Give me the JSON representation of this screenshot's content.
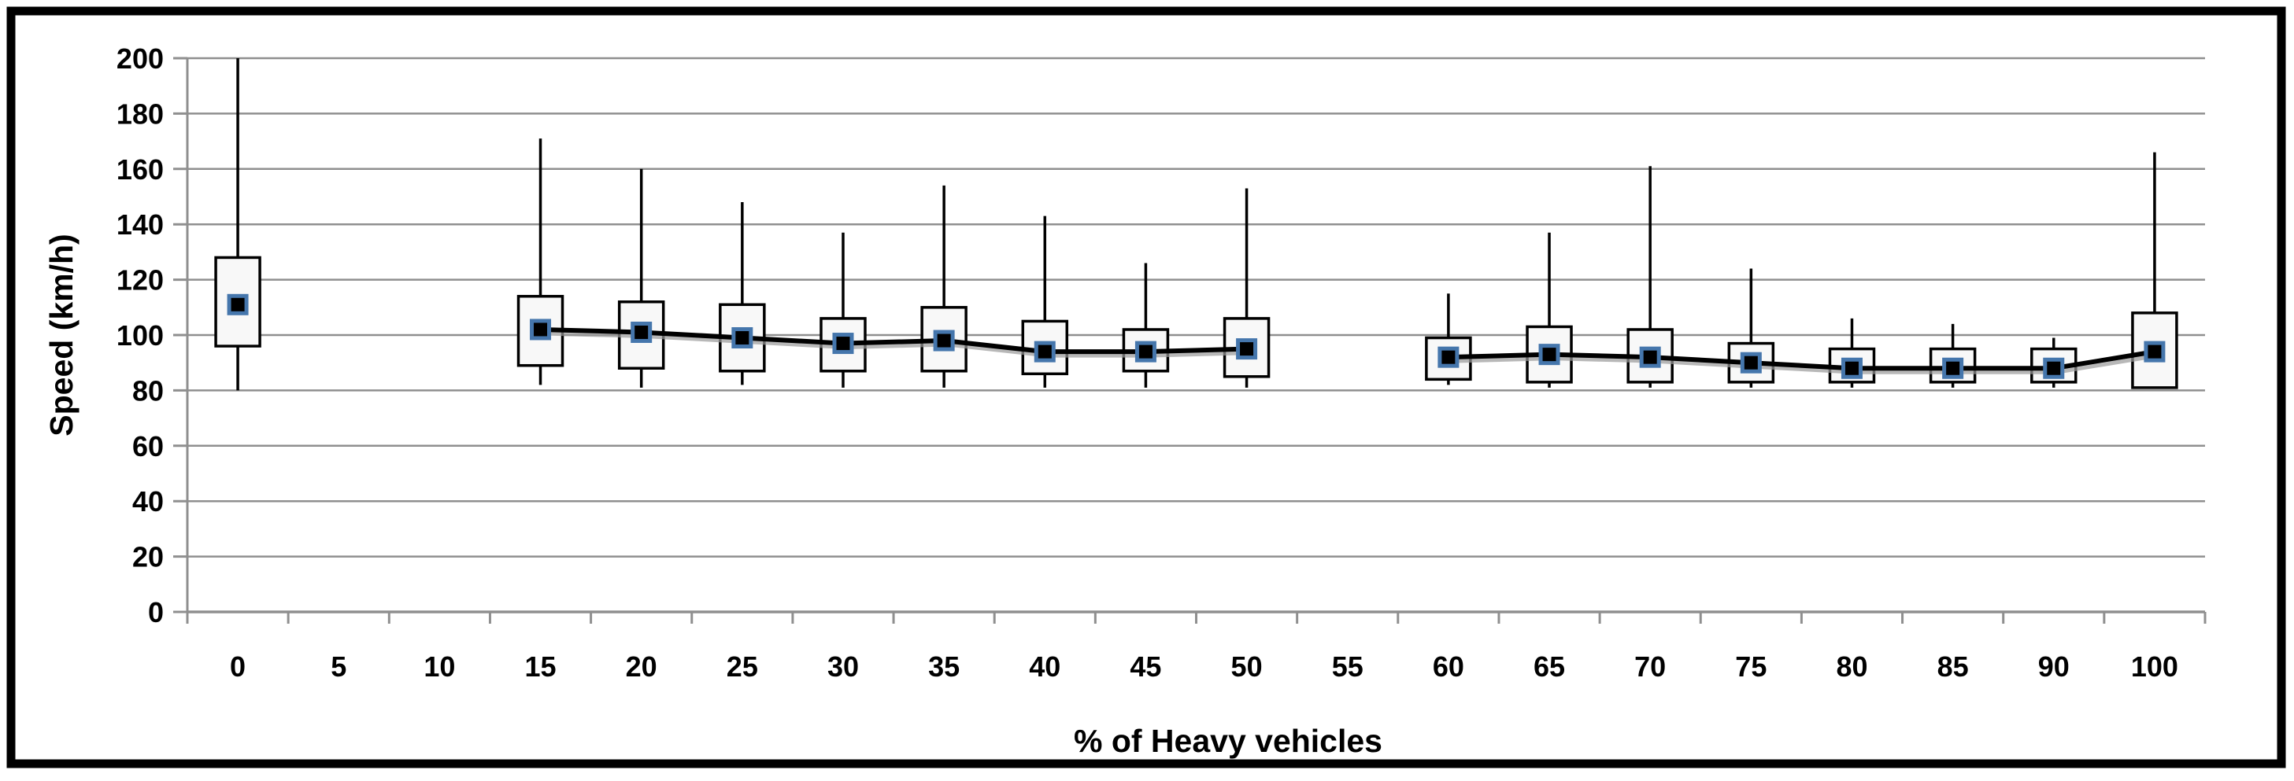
{
  "chart_data": {
    "type": "box",
    "title": "",
    "xlabel": "% of Heavy vehicles",
    "ylabel": "Speed (km/h)",
    "ylim": [
      0,
      200
    ],
    "y_ticks": [
      0,
      20,
      40,
      60,
      80,
      100,
      120,
      140,
      160,
      180,
      200
    ],
    "categories": [
      "0",
      "5",
      "10",
      "15",
      "20",
      "25",
      "30",
      "35",
      "40",
      "45",
      "50",
      "55",
      "60",
      "65",
      "70",
      "75",
      "80",
      "85",
      "90",
      "100"
    ],
    "empty_categories": [
      "5",
      "10",
      "55"
    ],
    "legend": "none",
    "grid": "horizontal",
    "boxes": [
      {
        "x": "0",
        "lo": 80,
        "q1": 96,
        "mean": 111,
        "q3": 128,
        "hi": 200
      },
      {
        "x": "15",
        "lo": 82,
        "q1": 89,
        "mean": 102,
        "q3": 114,
        "hi": 171
      },
      {
        "x": "20",
        "lo": 81,
        "q1": 88,
        "mean": 101,
        "q3": 112,
        "hi": 160
      },
      {
        "x": "25",
        "lo": 82,
        "q1": 87,
        "mean": 99,
        "q3": 111,
        "hi": 148
      },
      {
        "x": "30",
        "lo": 81,
        "q1": 87,
        "mean": 97,
        "q3": 106,
        "hi": 137
      },
      {
        "x": "35",
        "lo": 81,
        "q1": 87,
        "mean": 98,
        "q3": 110,
        "hi": 154
      },
      {
        "x": "40",
        "lo": 81,
        "q1": 86,
        "mean": 94,
        "q3": 105,
        "hi": 143
      },
      {
        "x": "45",
        "lo": 81,
        "q1": 87,
        "mean": 94,
        "q3": 102,
        "hi": 126
      },
      {
        "x": "50",
        "lo": 81,
        "q1": 85,
        "mean": 95,
        "q3": 106,
        "hi": 153
      },
      {
        "x": "60",
        "lo": 82,
        "q1": 84,
        "mean": 92,
        "q3": 99,
        "hi": 115
      },
      {
        "x": "65",
        "lo": 81,
        "q1": 83,
        "mean": 93,
        "q3": 103,
        "hi": 137
      },
      {
        "x": "70",
        "lo": 81,
        "q1": 83,
        "mean": 92,
        "q3": 102,
        "hi": 161
      },
      {
        "x": "75",
        "lo": 81,
        "q1": 83,
        "mean": 90,
        "q3": 97,
        "hi": 124
      },
      {
        "x": "80",
        "lo": 81,
        "q1": 83,
        "mean": 88,
        "q3": 95,
        "hi": 106
      },
      {
        "x": "85",
        "lo": 81,
        "q1": 83,
        "mean": 88,
        "q3": 95,
        "hi": 104
      },
      {
        "x": "90",
        "lo": 81,
        "q1": 83,
        "mean": 88,
        "q3": 95,
        "hi": 99
      },
      {
        "x": "100",
        "lo": 81,
        "q1": 81,
        "mean": 94,
        "q3": 108,
        "hi": 166
      }
    ],
    "mean_line_segments": [
      [
        "15",
        "20",
        "25",
        "30",
        "35",
        "40",
        "45",
        "50"
      ],
      [
        "60",
        "65",
        "70",
        "75",
        "80",
        "85",
        "90",
        "100"
      ]
    ],
    "colors": {
      "frame": "#000000",
      "gridline": "#8f8f8f",
      "axis": "#8f8f8f",
      "box_fill": "#f8f8f8",
      "box_stroke": "#000000",
      "whisker": "#000000",
      "mean_marker_fill": "#000000",
      "mean_marker_stroke": "#4576ac",
      "mean_line": "#000000",
      "mean_line_shadow": "#9a9a9a",
      "text": "#000000"
    }
  }
}
